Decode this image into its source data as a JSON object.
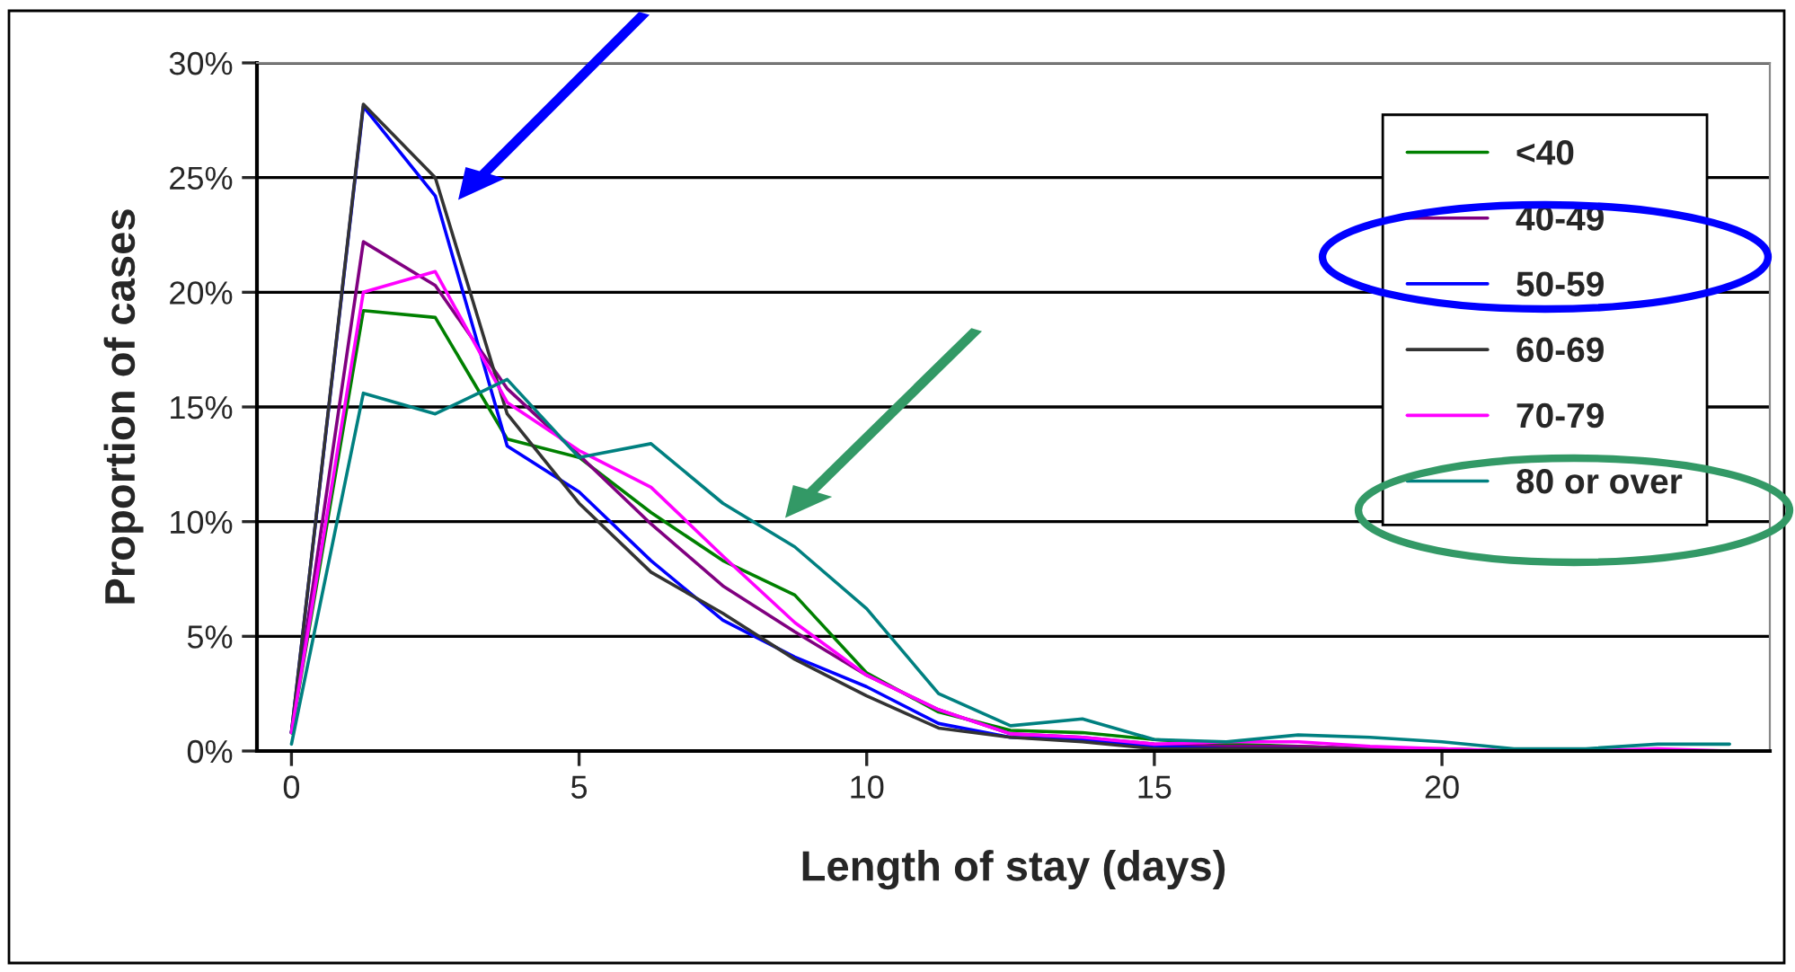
{
  "chart_data": {
    "type": "line",
    "xlabel": "Length of stay (days)",
    "ylabel": "Proportion of cases",
    "x": [
      0,
      1.25,
      2.5,
      3.75,
      5,
      6.25,
      7.5,
      8.75,
      10,
      11.25,
      12.5,
      13.75,
      15,
      16.25,
      17.5,
      18.75,
      20,
      21.25,
      22.5,
      23.75,
      25
    ],
    "xlim": [
      -0.6,
      25.7
    ],
    "xticks": [
      0,
      5,
      10,
      15,
      20
    ],
    "ylim": [
      0,
      30
    ],
    "yticks": [
      {
        "value": 0,
        "label": "0%"
      },
      {
        "value": 5,
        "label": "5%"
      },
      {
        "value": 10,
        "label": "10%"
      },
      {
        "value": 15,
        "label": "15%"
      },
      {
        "value": 20,
        "label": "20%"
      },
      {
        "value": 25,
        "label": "25%"
      },
      {
        "value": 30,
        "label": "30%"
      }
    ],
    "grid": "y",
    "legend": "top right",
    "marker": "none",
    "line_style": "solid",
    "series": [
      {
        "name": "<40",
        "color": "#008000",
        "values": [
          0.8,
          19.2,
          18.9,
          13.6,
          12.8,
          10.4,
          8.3,
          6.8,
          3.4,
          1.7,
          0.9,
          0.8,
          0.5,
          0.3,
          0.2,
          0.1,
          null,
          null,
          null,
          null,
          null
        ]
      },
      {
        "name": "40-49",
        "color": "#800080",
        "values": [
          0.8,
          22.2,
          20.3,
          15.8,
          12.9,
          9.9,
          7.2,
          5.2,
          3.3,
          1.8,
          0.75,
          0.6,
          0.3,
          0.2,
          0.2,
          0.1,
          0.1,
          0.0,
          0.0,
          null,
          null
        ]
      },
      {
        "name": "50-59",
        "color": "#0000ff",
        "values": [
          0.8,
          28.1,
          24.2,
          13.3,
          11.3,
          8.3,
          5.7,
          4.1,
          2.8,
          1.2,
          0.6,
          0.5,
          0.2,
          0.1,
          0.1,
          null,
          null,
          null,
          null,
          null,
          null
        ]
      },
      {
        "name": "60-69",
        "color": "#333333",
        "values": [
          0.8,
          28.2,
          25.0,
          14.7,
          10.8,
          7.8,
          6.0,
          4.0,
          2.4,
          1.0,
          0.6,
          0.4,
          0.1,
          0.1,
          0.1,
          0.1,
          0.0,
          null,
          null,
          null,
          null
        ]
      },
      {
        "name": "70-79",
        "color": "#ff00ff",
        "values": [
          0.8,
          20.0,
          20.9,
          15.2,
          13.1,
          11.5,
          8.5,
          5.6,
          3.3,
          1.8,
          0.75,
          0.6,
          0.3,
          0.4,
          0.4,
          0.2,
          0.1,
          0.0,
          0.0,
          0.1,
          0.0
        ]
      },
      {
        "name": "80 or over",
        "color": "#008080",
        "values": [
          0.3,
          15.6,
          14.7,
          16.2,
          12.8,
          13.4,
          10.8,
          8.9,
          6.2,
          2.5,
          1.1,
          1.4,
          0.5,
          0.4,
          0.7,
          0.6,
          0.4,
          0.1,
          0.1,
          0.3,
          0.3
        ]
      }
    ]
  }
}
